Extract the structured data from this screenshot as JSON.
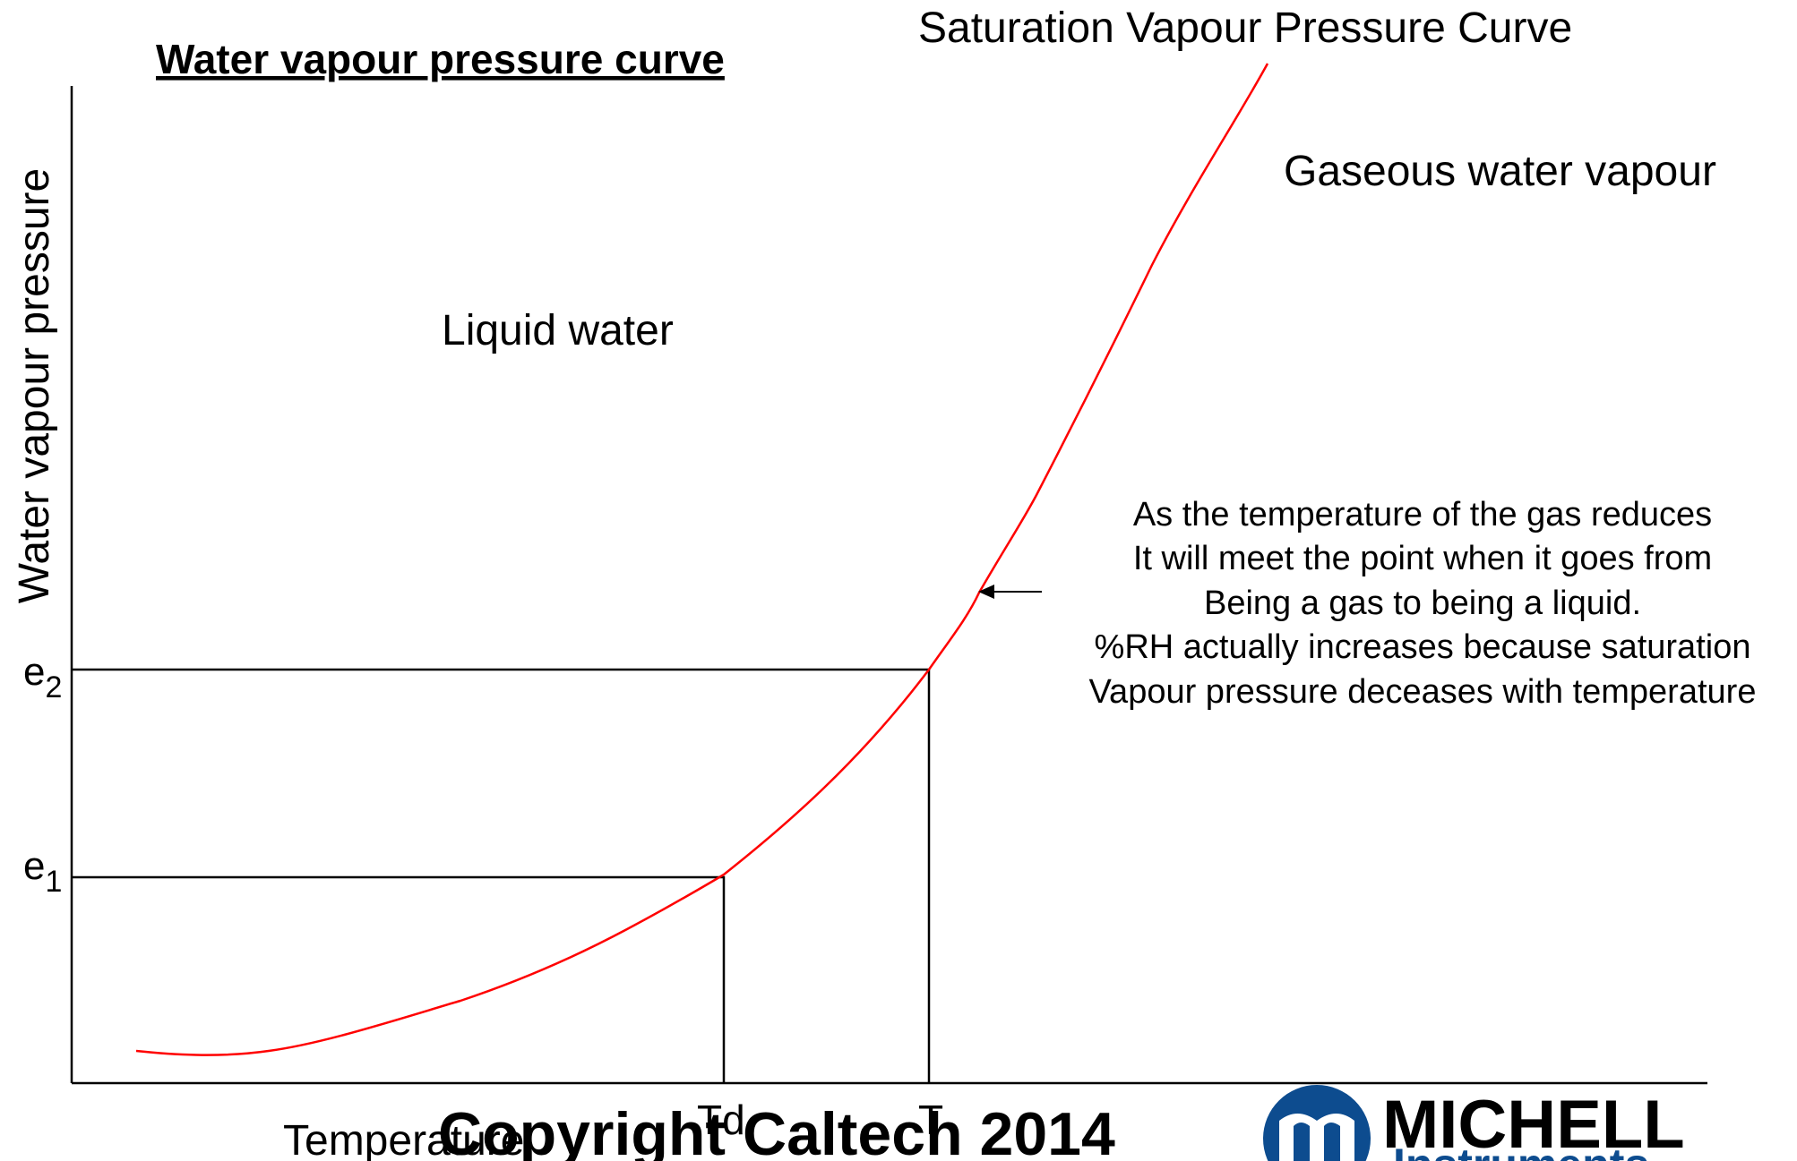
{
  "title": "Water vapour pressure curve",
  "y_axis_label": "Water vapour pressure",
  "x_axis_label": "Temperature",
  "levels": [
    {
      "base": "e",
      "sub": "2"
    },
    {
      "base": "e",
      "sub": "1"
    }
  ],
  "temperatures": [
    "Td",
    "T"
  ],
  "curve_label": "Saturation Vapour Pressure Curve",
  "regions": [
    "Gaseous water vapour",
    "Liquid water"
  ],
  "note": [
    "As the temperature of the gas reduces",
    "It will meet the point when it goes from",
    "Being a gas to being a liquid.",
    "%RH actually increases because saturation",
    "Vapour pressure deceases with temperature"
  ],
  "copyright": "Copyright Caltech 2014",
  "logo": {
    "name": "MICHELL",
    "sub": "Instruments"
  }
}
